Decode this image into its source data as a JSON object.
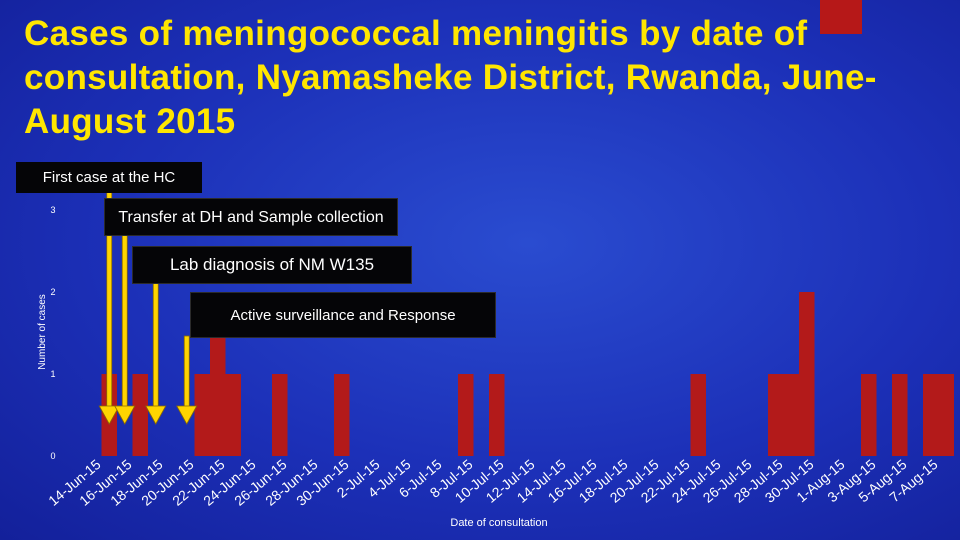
{
  "title": "Cases of meningococcal meningitis by date of consultation,  Nyamasheke  District,  Rwanda, June-August 2015",
  "annotations": {
    "first_case": "First case at the HC",
    "transfer": "Transfer at DH and Sample collection",
    "lab": "Lab diagnosis of NM W135",
    "active": "Active surveillance and Response"
  },
  "colors": {
    "title": "#ffe600",
    "bar": "#b31a1a",
    "arrow": "#ffd400",
    "axis_text": "#ffffff",
    "annotation_bg": "#050507"
  },
  "chart_data": {
    "type": "bar",
    "title": "",
    "xlabel": "Date of consultation",
    "ylabel": "Number of cases",
    "ylim": [
      0,
      3
    ],
    "yticks": [
      0,
      1,
      2,
      3
    ],
    "grid": false,
    "x_tick_labels": [
      "14-Jun-15",
      "16-Jun-15",
      "18-Jun-15",
      "20-Jun-15",
      "22-Jun-15",
      "24-Jun-15",
      "26-Jun-15",
      "28-Jun-15",
      "30-Jun-15",
      "2-Jul-15",
      "4-Jul-15",
      "6-Jul-15",
      "8-Jul-15",
      "10-Jul-15",
      "12-Jul-15",
      "14-Jul-15",
      "16-Jul-15",
      "18-Jul-15",
      "20-Jul-15",
      "22-Jul-15",
      "24-Jul-15",
      "26-Jul-15",
      "28-Jul-15",
      "30-Jul-15",
      "1-Aug-15",
      "3-Aug-15",
      "5-Aug-15",
      "7-Aug-15"
    ],
    "categories": [
      "14-Jun-15",
      "15-Jun-15",
      "16-Jun-15",
      "17-Jun-15",
      "18-Jun-15",
      "19-Jun-15",
      "20-Jun-15",
      "21-Jun-15",
      "22-Jun-15",
      "23-Jun-15",
      "24-Jun-15",
      "25-Jun-15",
      "26-Jun-15",
      "27-Jun-15",
      "28-Jun-15",
      "29-Jun-15",
      "30-Jun-15",
      "1-Jul-15",
      "2-Jul-15",
      "3-Jul-15",
      "4-Jul-15",
      "5-Jul-15",
      "6-Jul-15",
      "7-Jul-15",
      "8-Jul-15",
      "9-Jul-15",
      "10-Jul-15",
      "11-Jul-15",
      "12-Jul-15",
      "13-Jul-15",
      "14-Jul-15",
      "15-Jul-15",
      "16-Jul-15",
      "17-Jul-15",
      "18-Jul-15",
      "19-Jul-15",
      "20-Jul-15",
      "21-Jul-15",
      "22-Jul-15",
      "23-Jul-15",
      "24-Jul-15",
      "25-Jul-15",
      "26-Jul-15",
      "27-Jul-15",
      "28-Jul-15",
      "29-Jul-15",
      "30-Jul-15",
      "31-Jul-15",
      "1-Aug-15",
      "2-Aug-15",
      "3-Aug-15",
      "4-Aug-15",
      "5-Aug-15",
      "6-Aug-15",
      "7-Aug-15",
      "8-Aug-15"
    ],
    "values": [
      0,
      1,
      0,
      1,
      0,
      0,
      0,
      1,
      2,
      1,
      0,
      0,
      1,
      0,
      0,
      0,
      1,
      0,
      0,
      0,
      0,
      0,
      0,
      0,
      1,
      0,
      1,
      0,
      0,
      0,
      0,
      0,
      0,
      0,
      0,
      0,
      0,
      0,
      0,
      1,
      0,
      0,
      0,
      0,
      1,
      1,
      2,
      0,
      0,
      0,
      1,
      0,
      1,
      0,
      1,
      1
    ],
    "arrows_at": [
      "15-Jun-15",
      "16-Jun-15",
      "18-Jun-15",
      "20-Jun-15"
    ]
  }
}
